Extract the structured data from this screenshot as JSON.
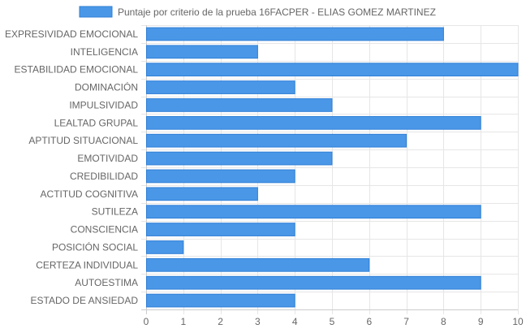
{
  "chart_data": {
    "type": "bar",
    "orientation": "horizontal",
    "categories": [
      "EXPRESIVIDAD EMOCIONAL",
      "INTELIGENCIA",
      "ESTABILIDAD EMOCIONAL",
      "DOMINACIÓN",
      "IMPULSIVIDAD",
      "LEALTAD GRUPAL",
      "APTITUD SITUACIONAL",
      "EMOTIVIDAD",
      "CREDIBILIDAD",
      "ACTITUD COGNITIVA",
      "SUTILEZA",
      "CONSCIENCIA",
      "POSICIÓN SOCIAL",
      "CERTEZA INDIVIDUAL",
      "AUTOESTIMA",
      "ESTADO DE ANSIEDAD"
    ],
    "series": [
      {
        "name": "Puntaje por criterio de la prueba 16FACPER - ELIAS GOMEZ MARTINEZ",
        "values": [
          8,
          3,
          10,
          4,
          5,
          9,
          7,
          5,
          4,
          3,
          9,
          4,
          1,
          6,
          9,
          4
        ]
      }
    ],
    "xlim": [
      0,
      10
    ],
    "x_ticks": [
      "0",
      "1",
      "2",
      "3",
      "4",
      "5",
      "6",
      "7",
      "8",
      "9",
      "10"
    ],
    "grid": true,
    "legend_position": "top",
    "colors": {
      "bar_fill": "#4a97e8",
      "bar_border": "#2f7fd6",
      "grid": "#e6e6e6",
      "text": "#666666"
    }
  }
}
